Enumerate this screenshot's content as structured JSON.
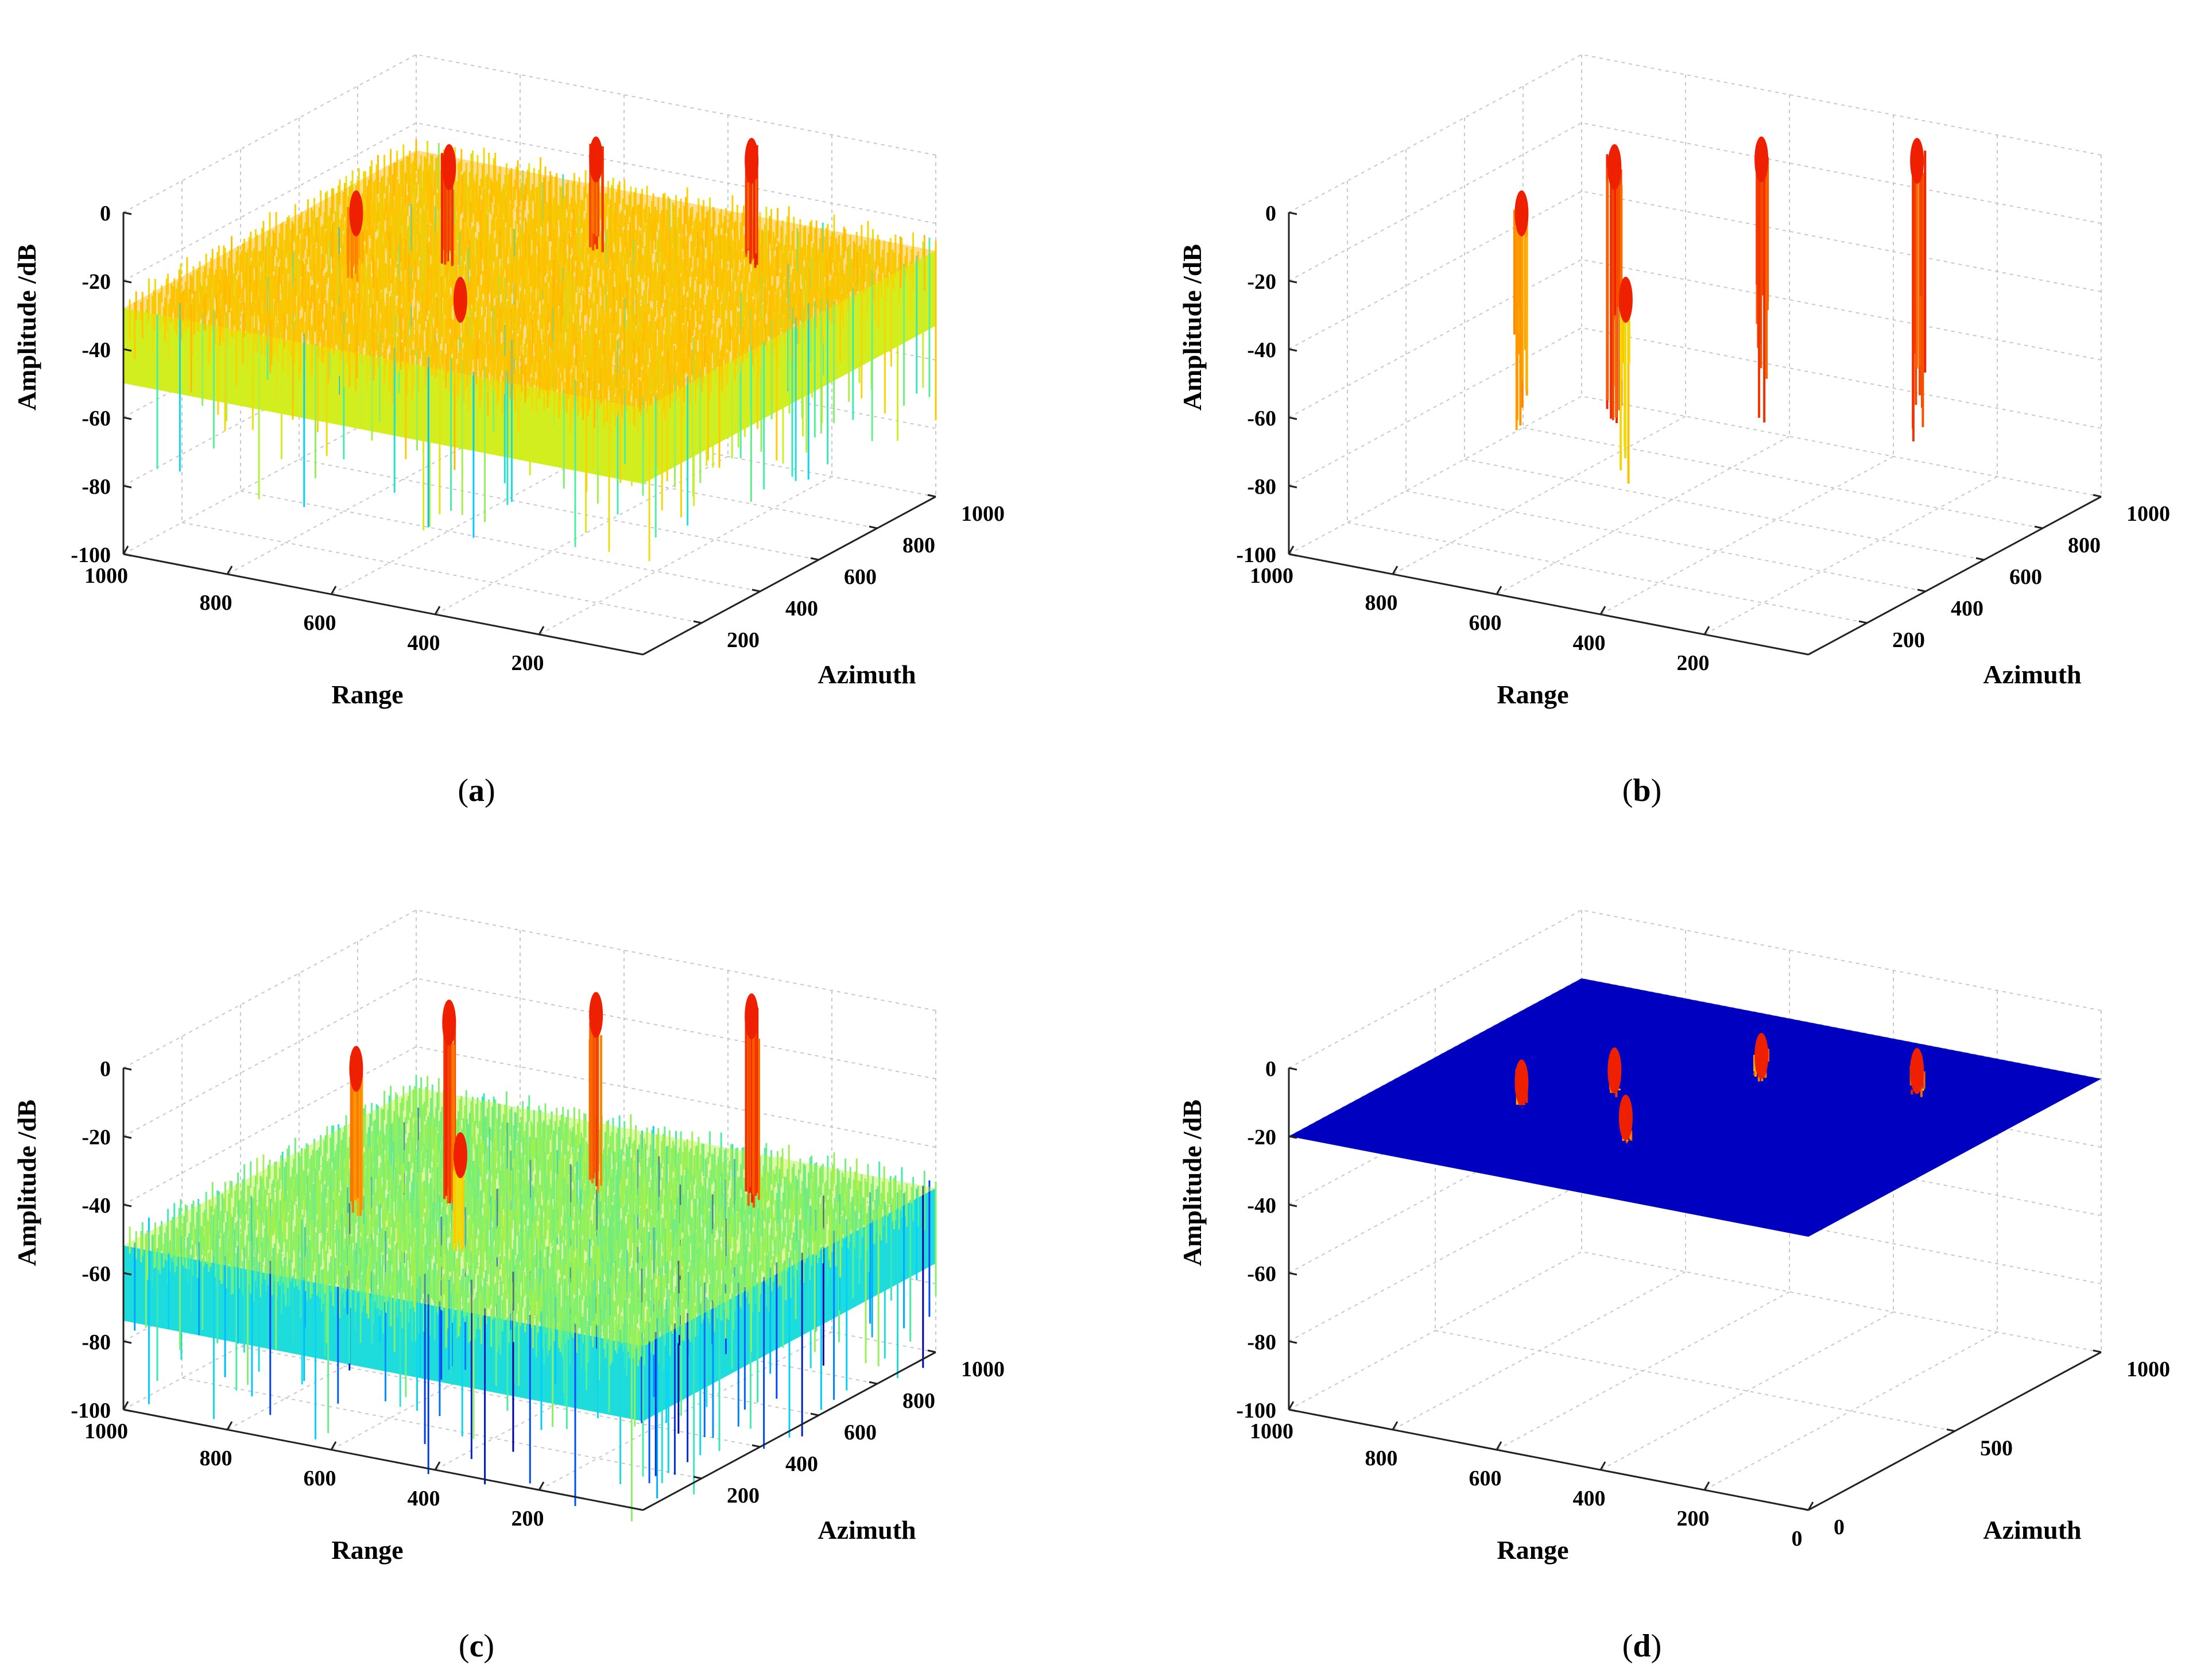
{
  "chart_data": [
    {
      "type": "surface",
      "caption": "a",
      "zlabel": "Amplitude /dB",
      "xlabel": "Range",
      "ylabel": "Azimuth",
      "zlim": [
        -100,
        0
      ],
      "xlim": [
        0,
        1000
      ],
      "ylim": [
        0,
        1000
      ],
      "z_ticks": [
        "0",
        "-20",
        "-40",
        "-60",
        "-80",
        "-100"
      ],
      "x_ticks": [
        "1000",
        "800",
        "600",
        "400",
        "200"
      ],
      "y_ticks": [
        "200",
        "400",
        "600",
        "800",
        "1000"
      ],
      "grid": true,
      "floor_level_db": -28,
      "noise_depth_db": 40,
      "colormap": [
        "#0000a0",
        "#0050ff",
        "#00d0ff",
        "#50f0a0",
        "#d0f020",
        "#ffd000",
        "#ff9000",
        "#ee2000"
      ],
      "targets": [
        {
          "range": 800,
          "azimuth": 440,
          "peak_db": -10
        },
        {
          "range": 700,
          "azimuth": 580,
          "peak_db": 0
        },
        {
          "range": 560,
          "azimuth": 370,
          "peak_db": -25
        },
        {
          "range": 530,
          "azimuth": 780,
          "peak_db": -2
        },
        {
          "range": 270,
          "azimuth": 850,
          "peak_db": 2
        }
      ]
    },
    {
      "type": "surface",
      "caption": "b",
      "zlabel": "Amplitude /dB",
      "xlabel": "Range",
      "ylabel": "Azimuth",
      "zlim": [
        -100,
        0
      ],
      "xlim": [
        0,
        1000
      ],
      "ylim": [
        0,
        1000
      ],
      "z_ticks": [
        "0",
        "-20",
        "-40",
        "-60",
        "-80",
        "-100"
      ],
      "x_ticks": [
        "1000",
        "800",
        "600",
        "400",
        "200"
      ],
      "y_ticks": [
        "200",
        "400",
        "600",
        "800",
        "1000"
      ],
      "grid": true,
      "floor_level_db": null,
      "colormap": [
        "#0000a0",
        "#0050ff",
        "#00d0ff",
        "#50f0a0",
        "#d0f020",
        "#ffd000",
        "#ff9000",
        "#ee2000"
      ],
      "targets": [
        {
          "range": 800,
          "azimuth": 440,
          "peak_db": -10
        },
        {
          "range": 700,
          "azimuth": 580,
          "peak_db": 0
        },
        {
          "range": 560,
          "azimuth": 370,
          "peak_db": -25
        },
        {
          "range": 530,
          "azimuth": 780,
          "peak_db": -2
        },
        {
          "range": 270,
          "azimuth": 850,
          "peak_db": 2
        }
      ]
    },
    {
      "type": "surface",
      "caption": "c",
      "zlabel": "Amplitude /dB",
      "xlabel": "Range",
      "ylabel": "Azimuth",
      "zlim": [
        -100,
        0
      ],
      "xlim": [
        0,
        1000
      ],
      "ylim": [
        0,
        1000
      ],
      "z_ticks": [
        "0",
        "-20",
        "-40",
        "-60",
        "-80",
        "-100"
      ],
      "x_ticks": [
        "1000",
        "800",
        "600",
        "400",
        "200"
      ],
      "y_ticks": [
        "200",
        "400",
        "600",
        "800",
        "1000"
      ],
      "grid": true,
      "floor_level_db": -52,
      "noise_depth_db": 42,
      "colormap": [
        "#0000a0",
        "#0050ff",
        "#00d0ff",
        "#50f0a0",
        "#d0f020",
        "#ffd000",
        "#ff9000",
        "#ee2000"
      ],
      "targets": [
        {
          "range": 800,
          "azimuth": 440,
          "peak_db": -10
        },
        {
          "range": 700,
          "azimuth": 580,
          "peak_db": 0
        },
        {
          "range": 560,
          "azimuth": 370,
          "peak_db": -25
        },
        {
          "range": 530,
          "azimuth": 780,
          "peak_db": -2
        },
        {
          "range": 270,
          "azimuth": 850,
          "peak_db": 2
        }
      ]
    },
    {
      "type": "surface",
      "caption": "d",
      "zlabel": "Amplitude /dB",
      "xlabel": "Range",
      "ylabel": "Azimuth",
      "zlim": [
        -100,
        0
      ],
      "xlim": [
        0,
        1000
      ],
      "ylim": [
        0,
        1000
      ],
      "z_ticks": [
        "0",
        "-20",
        "-40",
        "-60",
        "-80",
        "-100"
      ],
      "x_ticks": [
        "1000",
        "800",
        "600",
        "400",
        "200",
        "0"
      ],
      "y_ticks": [
        "0",
        "500",
        "1000"
      ],
      "grid": true,
      "floor_level_db": -20,
      "floor_color": "#0000c0",
      "colormap": [
        "#0000a0",
        "#0050ff",
        "#00d0ff",
        "#50f0a0",
        "#d0f020",
        "#ffd000",
        "#ff9000",
        "#ee2000"
      ],
      "targets": [
        {
          "range": 800,
          "azimuth": 440,
          "peak_db": -10
        },
        {
          "range": 700,
          "azimuth": 580,
          "peak_db": 0
        },
        {
          "range": 560,
          "azimuth": 370,
          "peak_db": -25
        },
        {
          "range": 530,
          "azimuth": 780,
          "peak_db": -2
        },
        {
          "range": 270,
          "azimuth": 850,
          "peak_db": 2
        }
      ]
    }
  ]
}
